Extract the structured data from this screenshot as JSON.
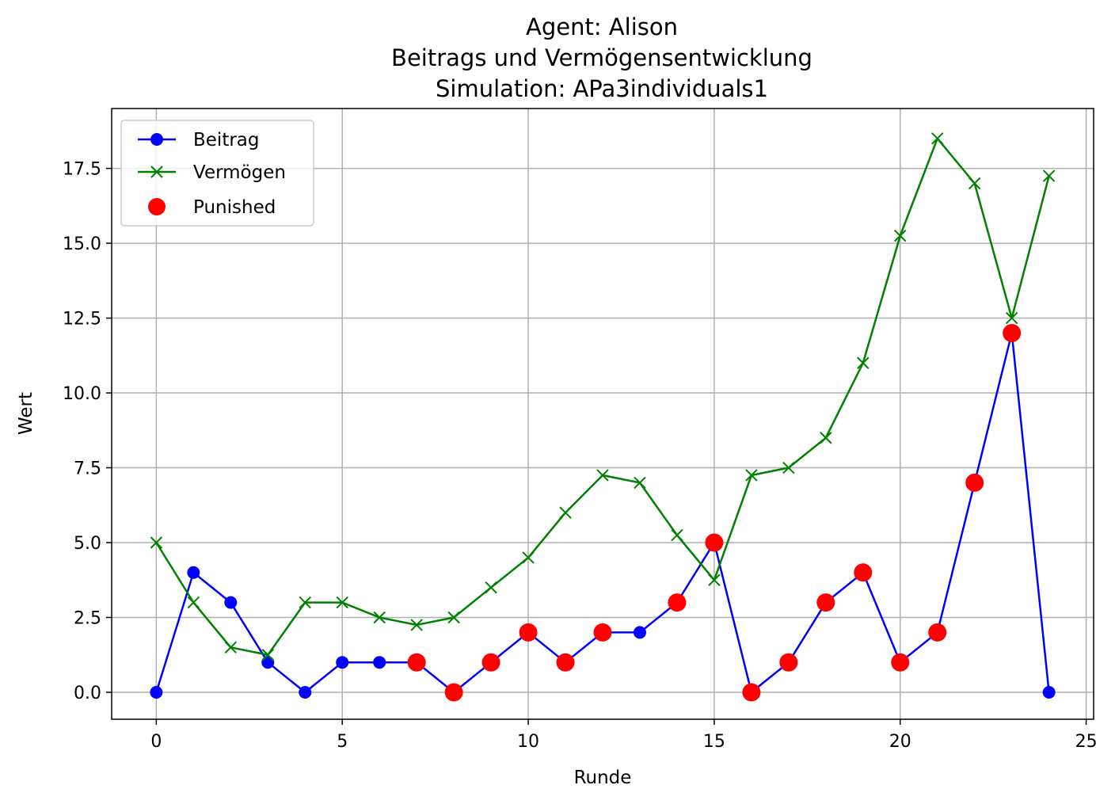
{
  "chart_data": {
    "type": "line",
    "title_lines": [
      "Agent: Alison",
      "Beitrags und Vermögensentwicklung",
      "Simulation: APa3individuals1"
    ],
    "xlabel": "Runde",
    "ylabel": "Wert",
    "xlim": [
      -1.2,
      25.2
    ],
    "ylim": [
      -0.9,
      19.5
    ],
    "xticks": [
      0,
      5,
      10,
      15,
      20,
      25
    ],
    "xtick_labels": [
      "0",
      "5",
      "10",
      "15",
      "20",
      "25"
    ],
    "yticks": [
      0,
      2.5,
      5,
      7.5,
      10,
      12.5,
      15,
      17.5
    ],
    "ytick_labels": [
      "0.0",
      "2.5",
      "5.0",
      "7.5",
      "10.0",
      "12.5",
      "15.0",
      "17.5"
    ],
    "grid": true,
    "legend_position": "upper-left",
    "x": [
      0,
      1,
      2,
      3,
      4,
      5,
      6,
      7,
      8,
      9,
      10,
      11,
      12,
      13,
      14,
      15,
      16,
      17,
      18,
      19,
      20,
      21,
      22,
      23,
      24
    ],
    "series": [
      {
        "name": "Beitrag",
        "color": "#0000ff",
        "marker": "circle",
        "values": [
          0,
          4,
          3,
          1,
          0,
          1,
          1,
          1,
          0,
          1,
          2,
          1,
          2,
          2,
          3,
          5,
          0,
          1,
          3,
          4,
          1,
          2,
          7,
          12,
          0
        ]
      },
      {
        "name": "Vermögen",
        "color": "#008000",
        "marker": "x",
        "values": [
          5,
          3,
          1.5,
          1.25,
          3,
          3,
          2.5,
          2.25,
          2.5,
          3.5,
          4.5,
          6,
          7.25,
          7,
          5.25,
          3.75,
          7.25,
          7.5,
          8.5,
          11,
          15.25,
          18.5,
          17,
          12.5,
          17.25
        ]
      }
    ],
    "punished": {
      "name": "Punished",
      "color": "#ff0000",
      "marker": "filled-circle",
      "x": [
        7,
        8,
        9,
        10,
        11,
        12,
        14,
        15,
        16,
        17,
        18,
        19,
        20,
        21,
        22,
        23
      ],
      "y": [
        1,
        0,
        1,
        2,
        1,
        2,
        3,
        5,
        0,
        1,
        3,
        4,
        1,
        2,
        7,
        12
      ]
    }
  }
}
